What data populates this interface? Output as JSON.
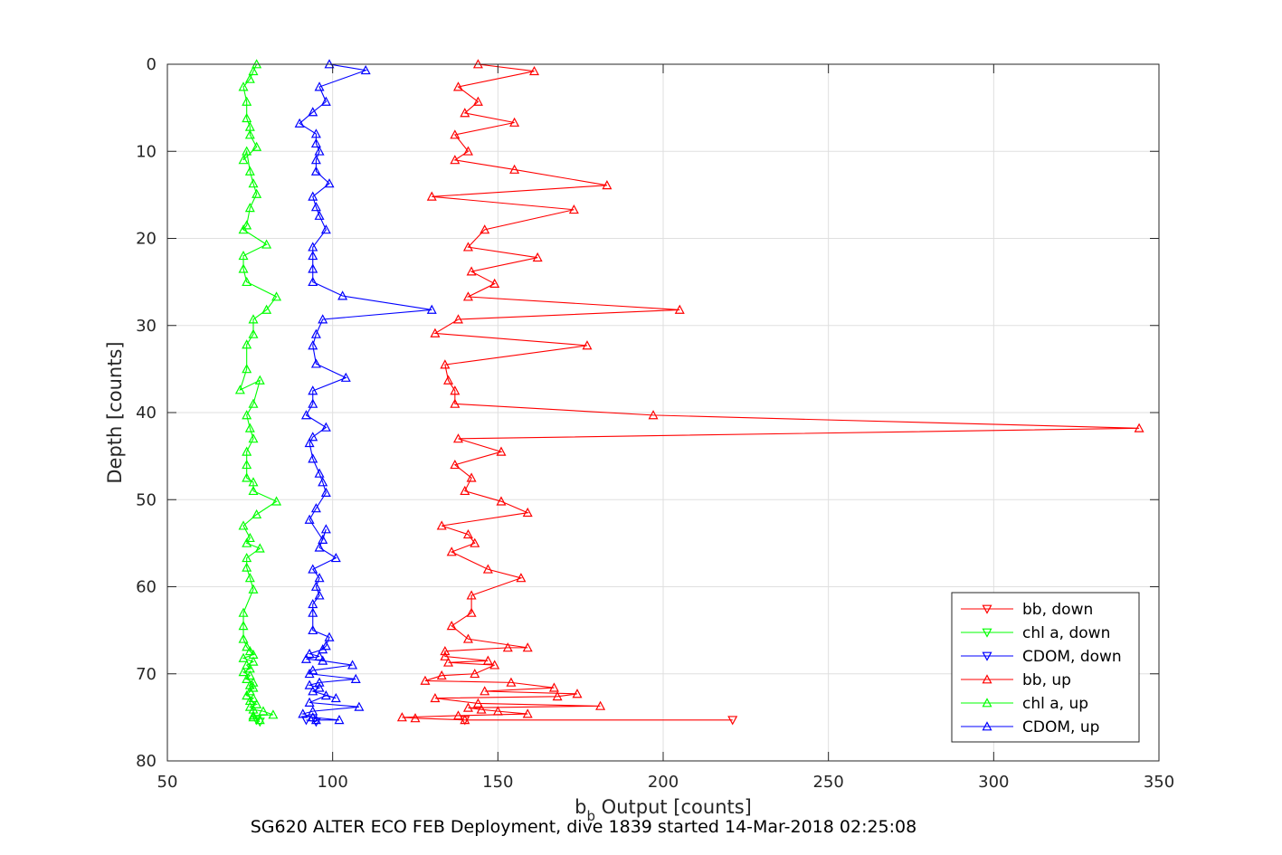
{
  "chart_data": {
    "type": "line",
    "xlabel_main": "b",
    "xlabel_sub": "b",
    "xlabel_rest": " Output [counts]",
    "ylabel": "Depth [counts]",
    "caption": "SG620 ALTER ECO FEB Deployment, dive 1839 started 14-Mar-2018 02:25:08",
    "xlim": [
      50,
      350
    ],
    "ylim": [
      0,
      80
    ],
    "y_reversed": true,
    "x_ticks": [
      "50",
      "100",
      "150",
      "200",
      "250",
      "300",
      "350"
    ],
    "y_ticks": [
      "0",
      "10",
      "20",
      "30",
      "40",
      "50",
      "60",
      "70",
      "80"
    ],
    "grid": true,
    "legend_position": "bottom-right",
    "series": [
      {
        "name": "bb, down",
        "color": "#ff0000",
        "marker": "triangle-down",
        "points": [
          [
            221,
            75.3
          ],
          [
            140,
            75.3
          ]
        ]
      },
      {
        "name": "chl a, down",
        "color": "#00ff00",
        "marker": "triangle-down",
        "points": [
          [
            77,
            75.3
          ],
          [
            78,
            75.5
          ]
        ]
      },
      {
        "name": "CDOM, down",
        "color": "#0000ff",
        "marker": "triangle-down",
        "points": [
          [
            92,
            75.3
          ],
          [
            95,
            75.5
          ]
        ]
      },
      {
        "name": "bb, up",
        "color": "#ff0000",
        "marker": "triangle-up",
        "points": [
          [
            140,
            75.3
          ],
          [
            125,
            75.1
          ],
          [
            121,
            75
          ],
          [
            138,
            74.8
          ],
          [
            159,
            74.6
          ],
          [
            150,
            74.3
          ],
          [
            145,
            74.1
          ],
          [
            141,
            73.9
          ],
          [
            181,
            73.7
          ],
          [
            144,
            73.4
          ],
          [
            131,
            72.8
          ],
          [
            168,
            72.6
          ],
          [
            174,
            72.3
          ],
          [
            146,
            72
          ],
          [
            167,
            71.6
          ],
          [
            154,
            71
          ],
          [
            128,
            70.8
          ],
          [
            133,
            70.2
          ],
          [
            143,
            70
          ],
          [
            149,
            69
          ],
          [
            135,
            68.7
          ],
          [
            147,
            68.5
          ],
          [
            134,
            68
          ],
          [
            134,
            67.4
          ],
          [
            153,
            67
          ],
          [
            159,
            67
          ],
          [
            141,
            66
          ],
          [
            136,
            64.5
          ],
          [
            142,
            63
          ],
          [
            142,
            61
          ],
          [
            157,
            59
          ],
          [
            147,
            58
          ],
          [
            136,
            56
          ],
          [
            143,
            55
          ],
          [
            141,
            54
          ],
          [
            133,
            53
          ],
          [
            159,
            51.5
          ],
          [
            151,
            50.2
          ],
          [
            140,
            49
          ],
          [
            142,
            47.5
          ],
          [
            137,
            46
          ],
          [
            151,
            44.5
          ],
          [
            138,
            43
          ],
          [
            344,
            41.8
          ],
          [
            197,
            40.3
          ],
          [
            137,
            39
          ],
          [
            137,
            37.5
          ],
          [
            135,
            36.3
          ],
          [
            134,
            34.5
          ],
          [
            177,
            32.3
          ],
          [
            131,
            30.9
          ],
          [
            138,
            29.3
          ],
          [
            205,
            28.2
          ],
          [
            141,
            26.7
          ],
          [
            149,
            25.2
          ],
          [
            142,
            23.8
          ],
          [
            162,
            22.2
          ],
          [
            141,
            21
          ],
          [
            146,
            19
          ],
          [
            173,
            16.7
          ],
          [
            130,
            15.2
          ],
          [
            183,
            13.9
          ],
          [
            155,
            12.1
          ],
          [
            137,
            11
          ],
          [
            141,
            10
          ],
          [
            137,
            8.1
          ],
          [
            155,
            6.7
          ],
          [
            140,
            5.6
          ],
          [
            144,
            4.3
          ],
          [
            138,
            2.6
          ],
          [
            161,
            0.8
          ],
          [
            144,
            0
          ]
        ]
      },
      {
        "name": "chl a, up",
        "color": "#00ff00",
        "marker": "triangle-up",
        "points": [
          [
            78,
            75.3
          ],
          [
            76,
            75
          ],
          [
            76,
            74.8
          ],
          [
            82,
            74.7
          ],
          [
            79,
            74.3
          ],
          [
            76,
            74.1
          ],
          [
            75,
            73.8
          ],
          [
            77,
            73.5
          ],
          [
            75,
            73.1
          ],
          [
            76,
            72.8
          ],
          [
            74,
            72.5
          ],
          [
            75,
            72
          ],
          [
            76,
            71.6
          ],
          [
            75,
            71.3
          ],
          [
            76,
            71
          ],
          [
            74,
            70.6
          ],
          [
            75,
            70.2
          ],
          [
            73,
            69.8
          ],
          [
            75,
            69.4
          ],
          [
            74,
            69
          ],
          [
            76,
            68.6
          ],
          [
            73,
            68.2
          ],
          [
            76,
            67.8
          ],
          [
            75,
            67.4
          ],
          [
            74,
            66.9
          ],
          [
            73,
            66
          ],
          [
            73,
            64.5
          ],
          [
            73,
            63
          ],
          [
            76,
            60.3
          ],
          [
            75,
            59
          ],
          [
            74,
            57.8
          ],
          [
            74,
            56.7
          ],
          [
            78,
            55.6
          ],
          [
            74,
            55
          ],
          [
            75,
            54.4
          ],
          [
            73,
            53
          ],
          [
            77,
            51.7
          ],
          [
            83,
            50.2
          ],
          [
            76,
            49
          ],
          [
            76,
            48
          ],
          [
            74,
            47.5
          ],
          [
            74,
            46
          ],
          [
            74,
            44.5
          ],
          [
            76,
            43
          ],
          [
            75,
            41.8
          ],
          [
            74,
            40.3
          ],
          [
            76,
            39
          ],
          [
            78,
            36.3
          ],
          [
            72,
            37.4
          ],
          [
            74,
            35
          ],
          [
            74,
            32.2
          ],
          [
            76,
            31
          ],
          [
            76,
            29.3
          ],
          [
            80,
            28.2
          ],
          [
            83,
            26.7
          ],
          [
            74,
            25
          ],
          [
            73,
            23.5
          ],
          [
            73,
            22
          ],
          [
            80,
            20.7
          ],
          [
            73,
            19
          ],
          [
            74,
            18.5
          ],
          [
            75,
            16.5
          ],
          [
            77,
            14.9
          ],
          [
            76,
            13.7
          ],
          [
            75,
            12.3
          ],
          [
            74,
            10
          ],
          [
            73,
            11
          ],
          [
            77,
            9.5
          ],
          [
            75,
            8.1
          ],
          [
            75,
            7.2
          ],
          [
            74,
            6.2
          ],
          [
            74,
            4.3
          ],
          [
            73,
            2.6
          ],
          [
            75,
            1.7
          ],
          [
            76,
            0.8
          ],
          [
            77,
            0
          ]
        ]
      },
      {
        "name": "CDOM, up",
        "color": "#0000ff",
        "marker": "triangle-up",
        "points": [
          [
            95,
            75.3
          ],
          [
            102,
            75.3
          ],
          [
            94,
            75
          ],
          [
            91,
            74.6
          ],
          [
            94,
            74.3
          ],
          [
            108,
            73.8
          ],
          [
            93,
            73.3
          ],
          [
            98,
            72.5
          ],
          [
            101,
            72.8
          ],
          [
            94,
            72
          ],
          [
            96,
            71.6
          ],
          [
            93,
            71.3
          ],
          [
            96,
            71
          ],
          [
            107,
            70.6
          ],
          [
            93,
            70
          ],
          [
            94,
            69.6
          ],
          [
            106,
            69
          ],
          [
            97,
            68.5
          ],
          [
            92,
            68.3
          ],
          [
            96,
            68
          ],
          [
            93,
            67.7
          ],
          [
            97,
            67.2
          ],
          [
            98,
            66.8
          ],
          [
            99,
            65.8
          ],
          [
            94,
            65
          ],
          [
            94,
            63
          ],
          [
            94,
            62
          ],
          [
            96,
            61
          ],
          [
            95,
            60
          ],
          [
            96,
            59
          ],
          [
            94,
            58
          ],
          [
            101,
            56.7
          ],
          [
            96,
            55.5
          ],
          [
            98,
            53.4
          ],
          [
            97,
            54.6
          ],
          [
            93,
            52.3
          ],
          [
            95,
            51
          ],
          [
            98,
            49.2
          ],
          [
            97,
            48
          ],
          [
            96,
            47
          ],
          [
            94,
            45.3
          ],
          [
            93,
            43.5
          ],
          [
            94,
            42.8
          ],
          [
            98,
            41.7
          ],
          [
            92,
            40.3
          ],
          [
            94,
            39
          ],
          [
            94,
            37.5
          ],
          [
            104,
            36
          ],
          [
            95,
            34.4
          ],
          [
            94,
            32.3
          ],
          [
            95,
            31
          ],
          [
            97,
            29.3
          ],
          [
            130,
            28.2
          ],
          [
            103,
            26.6
          ],
          [
            94,
            25
          ],
          [
            94,
            23.5
          ],
          [
            94,
            22
          ],
          [
            94,
            21
          ],
          [
            98,
            19
          ],
          [
            96,
            17.4
          ],
          [
            95,
            16.4
          ],
          [
            94,
            15.2
          ],
          [
            99,
            13.7
          ],
          [
            95,
            12.3
          ],
          [
            95,
            11
          ],
          [
            96,
            10
          ],
          [
            95,
            9.1
          ],
          [
            95,
            8
          ],
          [
            90,
            6.8
          ],
          [
            94,
            5.5
          ],
          [
            98,
            4.3
          ],
          [
            96,
            2.6
          ],
          [
            110,
            0.7
          ],
          [
            99,
            0
          ]
        ]
      }
    ]
  }
}
